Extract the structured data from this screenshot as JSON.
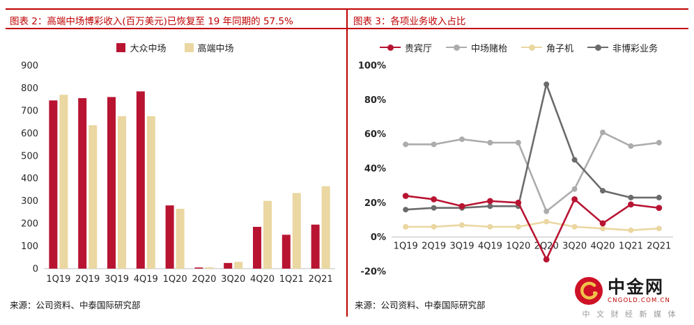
{
  "left_panel": {
    "title": "图表 2：高端中场博彩收入(百万美元)已恢复至 19 年同期的 57.5%",
    "source": "来源：公司资料、中泰国际研究部"
  },
  "right_panel": {
    "title": "图表 3：各项业务收入占比",
    "source": "来源：公司资料、中泰国际研究部"
  },
  "logo": {
    "name": "中金网",
    "domain": "CNGOLD.COM.CN",
    "tagline": "中 文 财 经 新 媒 体"
  },
  "colors": {
    "brand_red": "#C00000",
    "series_red": "#B81432",
    "series_tan": "#EAD7A1",
    "series_light_gray": "#ACACAC",
    "series_dark_gray": "#6B6B6B"
  },
  "chart_data": [
    {
      "type": "bar",
      "title": "图表 2：高端中场博彩收入(百万美元)已恢复至 19 年同期的 57.5%",
      "categories": [
        "1Q19",
        "2Q19",
        "3Q19",
        "4Q19",
        "1Q20",
        "2Q20",
        "3Q20",
        "4Q20",
        "1Q21",
        "2Q21"
      ],
      "series": [
        {
          "name": "大众中场",
          "color": "#B81432",
          "values": [
            745,
            755,
            760,
            785,
            280,
            5,
            25,
            185,
            150,
            195
          ]
        },
        {
          "name": "高端中场",
          "color": "#EAD7A1",
          "values": [
            770,
            635,
            675,
            675,
            265,
            6,
            30,
            300,
            335,
            365
          ]
        }
      ],
      "xlabel": "",
      "ylabel": "",
      "ylim": [
        0,
        900
      ],
      "ytick_step": 100,
      "grid": false,
      "legend_position": "top"
    },
    {
      "type": "line",
      "title": "图表 3：各项业务收入占比",
      "categories": [
        "1Q19",
        "2Q19",
        "3Q19",
        "4Q19",
        "1Q20",
        "2Q20",
        "3Q20",
        "4Q20",
        "1Q21",
        "2Q21"
      ],
      "series": [
        {
          "name": "贵宾厅",
          "color": "#B81432",
          "values": [
            24,
            22,
            18,
            21,
            20,
            -13,
            22,
            8,
            19,
            17
          ]
        },
        {
          "name": "中场赌枱",
          "color": "#ACACAC",
          "values": [
            54,
            54,
            57,
            55,
            55,
            15,
            28,
            61,
            53,
            55
          ]
        },
        {
          "name": "角子机",
          "color": "#EAD7A1",
          "values": [
            6,
            6,
            7,
            6,
            6,
            9,
            6,
            5,
            4,
            5
          ]
        },
        {
          "name": "非博彩业务",
          "color": "#6B6B6B",
          "values": [
            16,
            17,
            17,
            18,
            18,
            89,
            45,
            27,
            23,
            23
          ]
        }
      ],
      "xlabel": "",
      "ylabel": "",
      "unit": "%",
      "ylim": [
        -20,
        100
      ],
      "ytick_step": 20,
      "grid": false,
      "legend_position": "top"
    }
  ]
}
